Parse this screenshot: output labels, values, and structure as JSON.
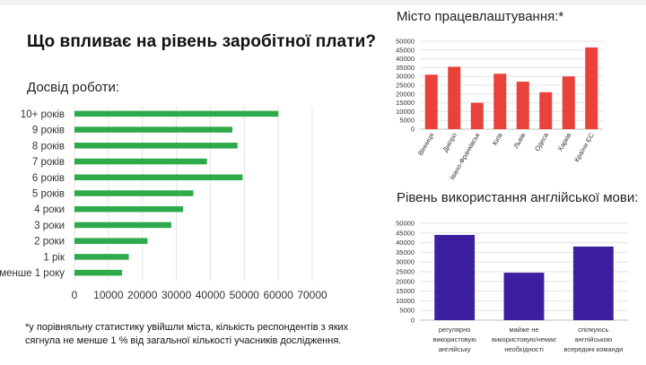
{
  "page": {
    "title": "Що впливає на рівень заробітної плати?",
    "footnote": "*у порівняльну статистику увійшли міста, кількість респондентів з яких сягнула не менше 1 % від загальної кількості учасників дослідження."
  },
  "colors": {
    "experience": "#2eaa4a",
    "city": "#e8423b",
    "english": "#3b1f9e",
    "grid": "#e3e3e3",
    "axis": "#bdbdbd"
  },
  "chart_data": [
    {
      "id": "experience",
      "type": "bar",
      "orientation": "horizontal",
      "title": "Досвід роботи:",
      "categories": [
        "10+ років",
        "9 років",
        "8 років",
        "7 років",
        "6 років",
        "5 років",
        "4 роки",
        "3 роки",
        "2 роки",
        "1 рік",
        "менше 1 року"
      ],
      "values": [
        60000,
        46500,
        48000,
        39000,
        49500,
        35000,
        32000,
        28500,
        21500,
        16000,
        14000
      ],
      "xlim": [
        0,
        70000
      ],
      "xticks": [
        0,
        10000,
        20000,
        30000,
        40000,
        50000,
        60000,
        70000
      ],
      "grid": true
    },
    {
      "id": "city",
      "type": "bar",
      "orientation": "vertical",
      "title": "Місто працевлаштування:*",
      "categories": [
        "Вінниця",
        "Дніпро",
        "Івано-Франківськ",
        "Київ",
        "Львів",
        "Одеса",
        "Харків",
        "Країни ЄС"
      ],
      "values": [
        31000,
        35500,
        15000,
        31500,
        27000,
        21000,
        30000,
        46500
      ],
      "ylim": [
        0,
        50000
      ],
      "yticks": [
        0,
        5000,
        10000,
        15000,
        20000,
        25000,
        30000,
        35000,
        40000,
        45000,
        50000
      ],
      "grid": true
    },
    {
      "id": "english",
      "type": "bar",
      "orientation": "vertical",
      "title": "Рівень використання англійської мови:",
      "categories": [
        [
          "регулярно",
          "використовую",
          "англійську"
        ],
        [
          "майже не",
          "використовую/немає",
          "необхідності"
        ],
        [
          "спілкуюсь",
          "англійською",
          "всередині команди"
        ]
      ],
      "values": [
        44000,
        24500,
        38000
      ],
      "ylim": [
        0,
        50000
      ],
      "yticks": [
        0,
        5000,
        10000,
        15000,
        20000,
        25000,
        30000,
        35000,
        40000,
        45000,
        50000
      ],
      "grid": true
    }
  ]
}
